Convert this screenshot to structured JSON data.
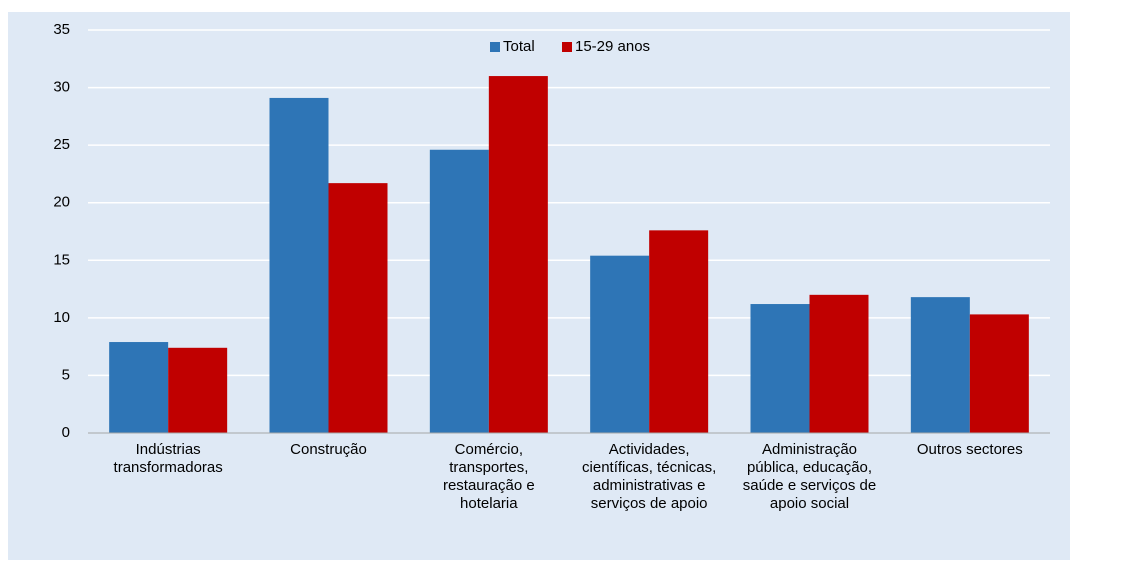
{
  "chart_data": {
    "type": "bar",
    "categories": [
      "Indústrias transformadoras",
      "Construção",
      "Comércio, transportes, restauração e hotelaria",
      "Actividades, científicas, técnicas, administrativas e serviços de apoio",
      "Administração pública, educação, saúde e serviços de apoio social",
      "Outros sectores"
    ],
    "series": [
      {
        "name": "Total",
        "color": "#2e75b6",
        "values": [
          7.9,
          29.1,
          24.6,
          15.4,
          11.2,
          11.8
        ]
      },
      {
        "name": "15-29 anos",
        "color": "#c00000",
        "values": [
          7.4,
          21.7,
          31.0,
          17.6,
          12.0,
          10.3
        ]
      }
    ],
    "ylim": [
      0,
      35
    ],
    "yticks": [
      0,
      5,
      10,
      15,
      20,
      25,
      30,
      35
    ],
    "grid": true,
    "legend": "top"
  }
}
